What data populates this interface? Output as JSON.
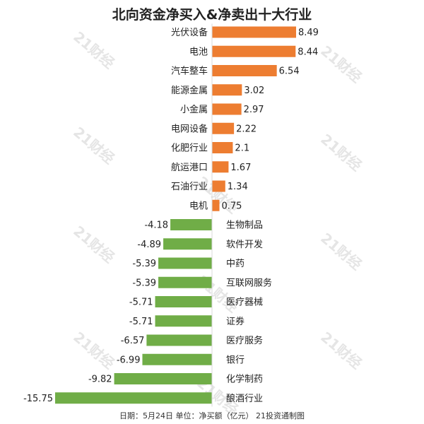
{
  "chart_data": {
    "type": "bar",
    "orientation": "horizontal",
    "title": "北向资金净买入&净卖出十大行业",
    "footer": "日期：5月24日 单位：净买额（亿元） 21投资通制图",
    "watermark": "21财经",
    "colors": {
      "positive": "#ED7D31",
      "negative": "#70AD47"
    },
    "categories": [
      "光伏设备",
      "电池",
      "汽车整车",
      "能源金属",
      "小金属",
      "电网设备",
      "化肥行业",
      "航运港口",
      "石油行业",
      "电机",
      "生物制品",
      "软件开发",
      "中药",
      "互联网服务",
      "医疗器械",
      "证券",
      "医疗服务",
      "银行",
      "化学制药",
      "酿酒行业"
    ],
    "values": [
      8.49,
      8.44,
      6.54,
      3.02,
      2.97,
      2.22,
      2.1,
      1.67,
      1.34,
      0.75,
      -4.18,
      -4.89,
      -5.39,
      -5.39,
      -5.71,
      -5.71,
      -6.57,
      -6.99,
      -9.82,
      -15.75
    ],
    "value_labels": [
      "8.49",
      "8.44",
      "6.54",
      "3.02",
      "2.97",
      "2.22",
      "2.1",
      "1.67",
      "1.34",
      "0.75",
      "-4.18",
      "-4.89",
      "-5.39",
      "-5.39",
      "-5.71",
      "-5.71",
      "-6.57",
      "-6.99",
      "-9.82",
      "-15.75"
    ],
    "xlim": [
      -15.75,
      8.49
    ],
    "grid": false,
    "legend": "none"
  }
}
